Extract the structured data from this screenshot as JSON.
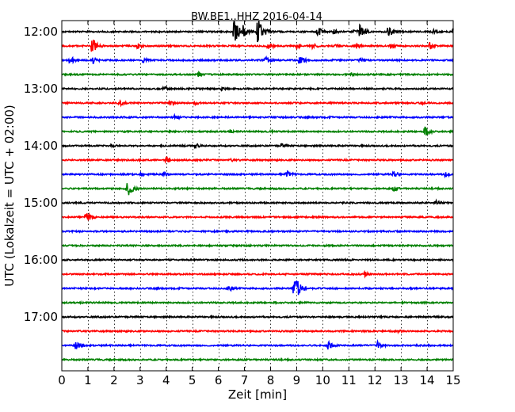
{
  "chart_data": {
    "type": "line",
    "title": "BW.BE1..HHZ 2016-04-14",
    "xlabel": "Zeit  [min]",
    "ylabel": "UTC (Lokalzeit = UTC + 02:00)",
    "xlim": [
      0,
      15
    ],
    "x_ticks": [
      0,
      1,
      2,
      3,
      4,
      5,
      6,
      7,
      8,
      9,
      10,
      11,
      12,
      13,
      14,
      15
    ],
    "y_tick_labels": [
      "12:00",
      "13:00",
      "14:00",
      "15:00",
      "16:00",
      "17:00"
    ],
    "grid": "vertical dotted",
    "legend": "none",
    "trace_colors": [
      "#000000",
      "#ff0000",
      "#0000ff",
      "#008000"
    ],
    "series": [
      {
        "start": "12:00",
        "color": "#000000",
        "events": [
          [
            6.6,
            2.3
          ],
          [
            7.5,
            2.6
          ],
          [
            6.9,
            1.6
          ],
          [
            9.8,
            0.9
          ],
          [
            10.4,
            0.6
          ],
          [
            11.2,
            0.5
          ],
          [
            11.4,
            1.4
          ],
          [
            12.5,
            1.1
          ],
          [
            14.2,
            0.5
          ],
          [
            15.0,
            0.6
          ]
        ]
      },
      {
        "start": "12:15",
        "color": "#ff0000",
        "events": [
          [
            1.15,
            1.6
          ],
          [
            2.9,
            0.6
          ],
          [
            7.9,
            0.8
          ],
          [
            9.0,
            0.7
          ],
          [
            9.6,
            0.6
          ],
          [
            10.5,
            0.5
          ],
          [
            11.3,
            0.5
          ],
          [
            12.6,
            0.5
          ],
          [
            14.1,
            0.7
          ]
        ]
      },
      {
        "start": "12:30",
        "color": "#0000ff",
        "events": [
          [
            0.3,
            0.9
          ],
          [
            1.2,
            0.7
          ],
          [
            3.1,
            0.6
          ],
          [
            7.8,
            0.7
          ],
          [
            9.1,
            0.9
          ],
          [
            11.4,
            0.5
          ]
        ]
      },
      {
        "start": "12:45",
        "color": "#008000",
        "events": [
          [
            5.2,
            0.6
          ],
          [
            11.1,
            0.4
          ]
        ]
      },
      {
        "start": "13:00",
        "color": "#000000",
        "events": [
          [
            3.9,
            0.6
          ],
          [
            6.1,
            0.5
          ]
        ]
      },
      {
        "start": "13:15",
        "color": "#ff0000",
        "events": [
          [
            2.2,
            0.6
          ],
          [
            4.1,
            0.5
          ],
          [
            5.1,
            0.4
          ],
          [
            13.7,
            0.4
          ]
        ]
      },
      {
        "start": "13:30",
        "color": "#0000ff",
        "events": [
          [
            4.3,
            0.5
          ]
        ]
      },
      {
        "start": "13:45",
        "color": "#008000",
        "events": [
          [
            6.4,
            0.4
          ],
          [
            8.0,
            0.3
          ],
          [
            13.9,
            1.0
          ]
        ]
      },
      {
        "start": "14:00",
        "color": "#000000",
        "events": [
          [
            1.9,
            0.4
          ],
          [
            5.1,
            0.6
          ],
          [
            8.4,
            0.5
          ]
        ]
      },
      {
        "start": "14:15",
        "color": "#ff0000",
        "events": [
          [
            4.0,
            0.7
          ],
          [
            6.5,
            0.3
          ]
        ]
      },
      {
        "start": "14:30",
        "color": "#0000ff",
        "events": [
          [
            3.0,
            0.4
          ],
          [
            3.9,
            0.5
          ],
          [
            8.6,
            0.8
          ],
          [
            12.7,
            0.7
          ],
          [
            14.7,
            0.6
          ]
        ]
      },
      {
        "start": "14:45",
        "color": "#008000",
        "events": [
          [
            2.5,
            1.6
          ],
          [
            12.7,
            0.5
          ]
        ]
      },
      {
        "start": "15:00",
        "color": "#000000",
        "events": [
          [
            14.3,
            0.6
          ]
        ]
      },
      {
        "start": "15:15",
        "color": "#ff0000",
        "events": [
          [
            0.9,
            1.1
          ]
        ]
      },
      {
        "start": "15:30",
        "color": "#0000ff",
        "events": []
      },
      {
        "start": "15:45",
        "color": "#008000",
        "events": []
      },
      {
        "start": "16:00",
        "color": "#000000",
        "events": []
      },
      {
        "start": "16:15",
        "color": "#ff0000",
        "events": [
          [
            11.6,
            0.5
          ]
        ]
      },
      {
        "start": "16:30",
        "color": "#0000ff",
        "events": [
          [
            6.4,
            0.6
          ],
          [
            8.9,
            2.6
          ]
        ]
      },
      {
        "start": "16:45",
        "color": "#008000",
        "events": []
      },
      {
        "start": "17:00",
        "color": "#000000",
        "events": []
      },
      {
        "start": "17:15",
        "color": "#ff0000",
        "events": [
          [
            12.9,
            0.3
          ]
        ]
      },
      {
        "start": "17:30",
        "color": "#0000ff",
        "events": [
          [
            0.5,
            0.9
          ],
          [
            10.2,
            0.8
          ],
          [
            12.1,
            0.8
          ]
        ]
      },
      {
        "start": "17:45",
        "color": "#008000",
        "events": []
      }
    ]
  }
}
